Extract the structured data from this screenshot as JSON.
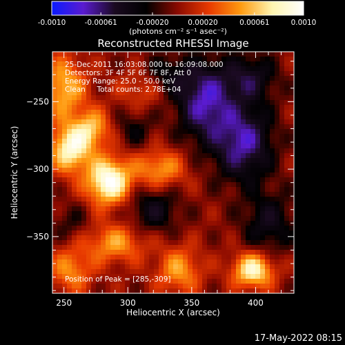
{
  "chart_data": {
    "type": "heatmap",
    "title": "Reconstructed RHESSI Image",
    "xlabel": "Heliocentric X (arcsec)",
    "ylabel": "Heliocentric Y (arcsec)",
    "xlim": [
      241,
      430
    ],
    "ylim": [
      -392,
      -213
    ],
    "xticks": [
      250,
      300,
      350,
      400
    ],
    "yticks": [
      -250,
      -300,
      -350
    ],
    "colorbar": {
      "min": -0.001,
      "max": 0.001,
      "ticks": [
        "-0.0010",
        "-0.00061",
        "-0.00020",
        "0.00020",
        "0.00061",
        "0.0010"
      ],
      "tick_values": [
        -0.001,
        -0.00061,
        -0.0002,
        0.0002,
        0.00061,
        0.001
      ],
      "label": "(photons cm⁻² s⁻¹ asec⁻²)",
      "colormap": [
        "#0a1bff",
        "#5a1bd0",
        "#1a0a20",
        "#000000",
        "#8a0a00",
        "#e83a00",
        "#ff9a10",
        "#fff5b0",
        "#ffffff"
      ]
    },
    "annotations": [
      "25-Dec-2011 16:03:08.000 to 16:09:08.000",
      "Detectors: 3F 4F 5F 6F 7F 8F, Att 0",
      "Energy Range: 25.0 - 50.0 keV",
      "Clean     Total counts: 2.78E+04"
    ],
    "peak_label": "Position of Peak = [285,-309]",
    "peak": [
      285,
      -309
    ],
    "sources": [
      {
        "x": 285,
        "y": -309,
        "amp": 0.001,
        "sx": 12,
        "sy": 12
      },
      {
        "x": 255,
        "y": -285,
        "amp": 0.00085,
        "sx": 11,
        "sy": 12
      },
      {
        "x": 398,
        "y": -375,
        "amp": 0.00085,
        "sx": 11,
        "sy": 9
      },
      {
        "x": 272,
        "y": -270,
        "amp": 0.00055,
        "sx": 10,
        "sy": 10
      },
      {
        "x": 250,
        "y": -240,
        "amp": 0.0006,
        "sx": 12,
        "sy": 16
      },
      {
        "x": 325,
        "y": -300,
        "amp": 0.0005,
        "sx": 14,
        "sy": 10
      },
      {
        "x": 290,
        "y": -355,
        "amp": 0.0005,
        "sx": 16,
        "sy": 10
      },
      {
        "x": 255,
        "y": -375,
        "amp": 0.00045,
        "sx": 12,
        "sy": 12
      },
      {
        "x": 340,
        "y": -375,
        "amp": 0.0005,
        "sx": 12,
        "sy": 12
      },
      {
        "x": 310,
        "y": -240,
        "amp": 0.0003,
        "sx": 12,
        "sy": 10
      },
      {
        "x": 395,
        "y": -232,
        "amp": -0.00045,
        "sx": 15,
        "sy": 12
      },
      {
        "x": 360,
        "y": -250,
        "amp": -0.0007,
        "sx": 15,
        "sy": 20
      },
      {
        "x": 390,
        "y": -280,
        "amp": -0.0007,
        "sx": 16,
        "sy": 20
      },
      {
        "x": 410,
        "y": -340,
        "amp": -0.0004,
        "sx": 14,
        "sy": 16
      },
      {
        "x": 320,
        "y": -330,
        "amp": -0.0004,
        "sx": 14,
        "sy": 12
      },
      {
        "x": 330,
        "y": -230,
        "amp": -0.0003,
        "sx": 15,
        "sy": 10
      },
      {
        "x": 305,
        "y": -270,
        "amp": -0.00025,
        "sx": 10,
        "sy": 10
      },
      {
        "x": 255,
        "y": -340,
        "amp": -0.0002,
        "sx": 10,
        "sy": 10
      }
    ]
  },
  "footer": {
    "timestamp": "17-May-2022 08:15"
  }
}
